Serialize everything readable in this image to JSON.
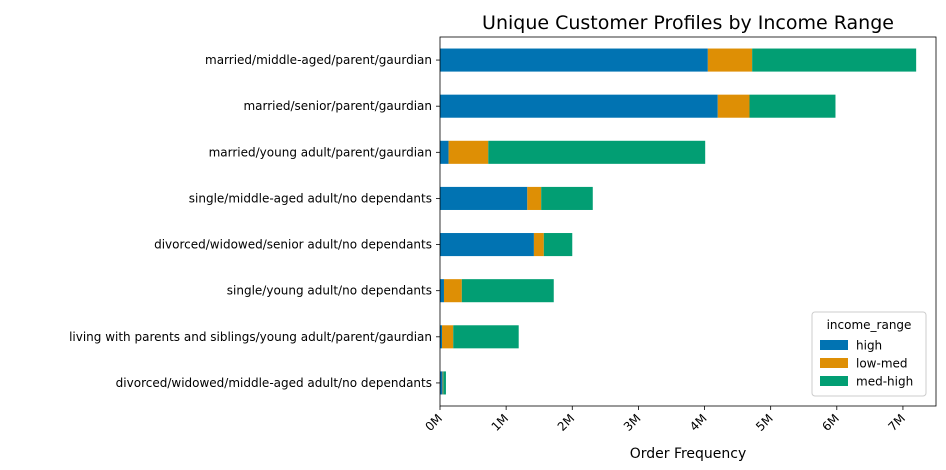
{
  "chart_data": {
    "type": "bar",
    "orientation": "horizontal",
    "stacked": true,
    "title": "Unique Customer Profiles by Income Range",
    "xlabel": "Order Frequency",
    "ylabel": "",
    "xlim": [
      0,
      7500000
    ],
    "x_ticks": [
      0,
      1000000,
      2000000,
      3000000,
      4000000,
      5000000,
      6000000,
      7000000
    ],
    "x_tick_labels": [
      "0M",
      "1M",
      "2M",
      "3M",
      "4M",
      "5M",
      "6M",
      "7M"
    ],
    "categories": [
      "married/middle-aged/parent/gaurdian",
      "married/senior/parent/gaurdian",
      "married/young adult/parent/gaurdian",
      "single/middle-aged adult/no dependants",
      "divorced/widowed/senior adult/no dependants",
      "single/young adult/no dependants",
      "living with parents and siblings/young adult/parent/gaurdian",
      "divorced/widowed/middle-aged adult/no dependants"
    ],
    "series": [
      {
        "name": "high",
        "color": "#0173b2",
        "values": [
          4050000,
          4200000,
          130000,
          1320000,
          1420000,
          60000,
          30000,
          40000
        ]
      },
      {
        "name": "low-med",
        "color": "#de8f05",
        "values": [
          670000,
          480000,
          600000,
          210000,
          150000,
          270000,
          170000,
          10000
        ]
      },
      {
        "name": "med-high",
        "color": "#029e73",
        "values": [
          2480000,
          1300000,
          3280000,
          780000,
          430000,
          1390000,
          990000,
          40000
        ]
      }
    ],
    "legend": {
      "title": "income_range",
      "placement": "lower-right"
    },
    "grid": false
  }
}
